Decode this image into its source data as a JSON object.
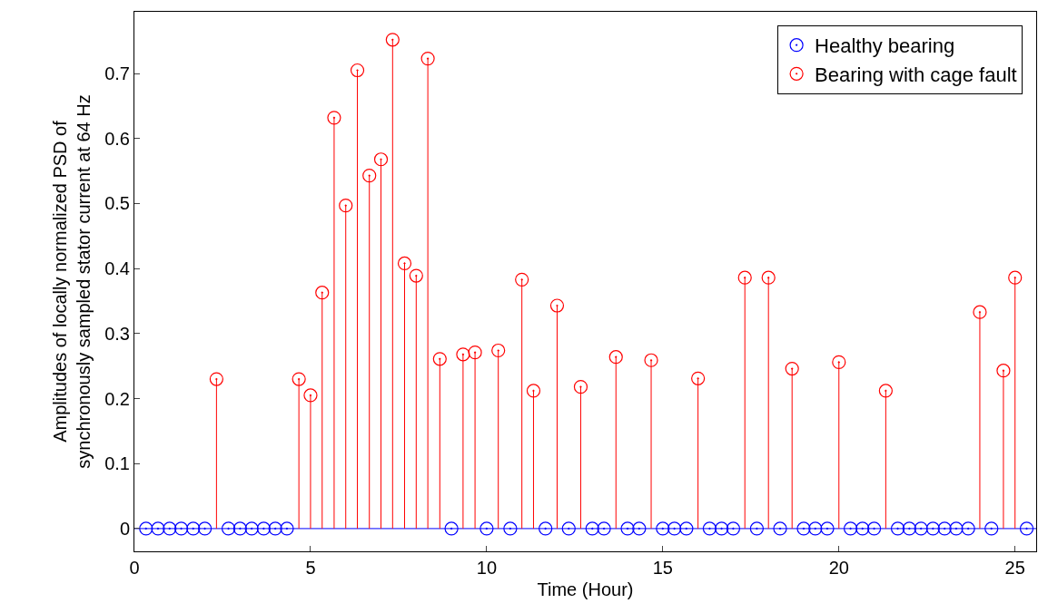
{
  "chart_data": {
    "type": "lollipop",
    "xlabel": "Time (Hour)",
    "ylabel": "Amplitudes of locally normalized PSD of\nsynchronously sampled stator current at 64 Hz",
    "xlim": [
      0,
      25.6
    ],
    "xticks": [
      0,
      5,
      10,
      15,
      20,
      25
    ],
    "ylim": [
      -0.035,
      0.795
    ],
    "yticks": [
      0,
      0.1,
      0.2,
      0.3,
      0.4,
      0.5,
      0.6,
      0.7
    ],
    "grid": false,
    "legend": "top right",
    "marker": "circle",
    "line_style": "solid",
    "ref_lines": [
      {
        "axis": "y",
        "value": 0,
        "color": "#0000ff"
      }
    ],
    "series": [
      {
        "name": "Healthy bearing",
        "color": "#0000ff",
        "x": [
          0.33,
          0.67,
          1,
          1.33,
          1.67,
          2,
          2.67,
          3,
          3.33,
          3.67,
          4,
          4.33,
          9,
          10,
          10.67,
          11.67,
          12.33,
          13,
          13.33,
          14,
          14.33,
          15,
          15.33,
          15.67,
          16.33,
          16.67,
          17,
          17.67,
          18.33,
          19,
          19.33,
          19.67,
          20.33,
          20.67,
          21,
          21.67,
          22,
          22.33,
          22.67,
          23,
          23.33,
          23.67,
          24.33,
          25.33
        ],
        "values": [
          0,
          0,
          0,
          0,
          0,
          0,
          0,
          0,
          0,
          0,
          0,
          0,
          0,
          0,
          0,
          0,
          0,
          0,
          0,
          0,
          0,
          0,
          0,
          0,
          0,
          0,
          0,
          0,
          0,
          0,
          0,
          0,
          0,
          0,
          0,
          0,
          0,
          0,
          0,
          0,
          0,
          0,
          0,
          0
        ]
      },
      {
        "name": "Bearing with cage fault",
        "color": "#ff0000",
        "x": [
          2.33,
          4.67,
          5,
          5.33,
          5.67,
          6,
          6.33,
          6.67,
          7,
          7.33,
          7.67,
          8,
          8.33,
          8.67,
          9.33,
          9.67,
          10.33,
          11,
          11.33,
          12,
          12.67,
          13.67,
          14.67,
          16,
          17.33,
          18,
          18.67,
          20,
          21.33,
          24,
          24.67,
          25
        ],
        "values": [
          0.23,
          0.23,
          0.205,
          0.363,
          0.632,
          0.497,
          0.705,
          0.543,
          0.568,
          0.752,
          0.408,
          0.389,
          0.723,
          0.261,
          0.268,
          0.271,
          0.274,
          0.383,
          0.212,
          0.343,
          0.218,
          0.264,
          0.259,
          0.231,
          0.386,
          0.386,
          0.246,
          0.256,
          0.212,
          0.333,
          0.243,
          0.386
        ]
      }
    ]
  }
}
